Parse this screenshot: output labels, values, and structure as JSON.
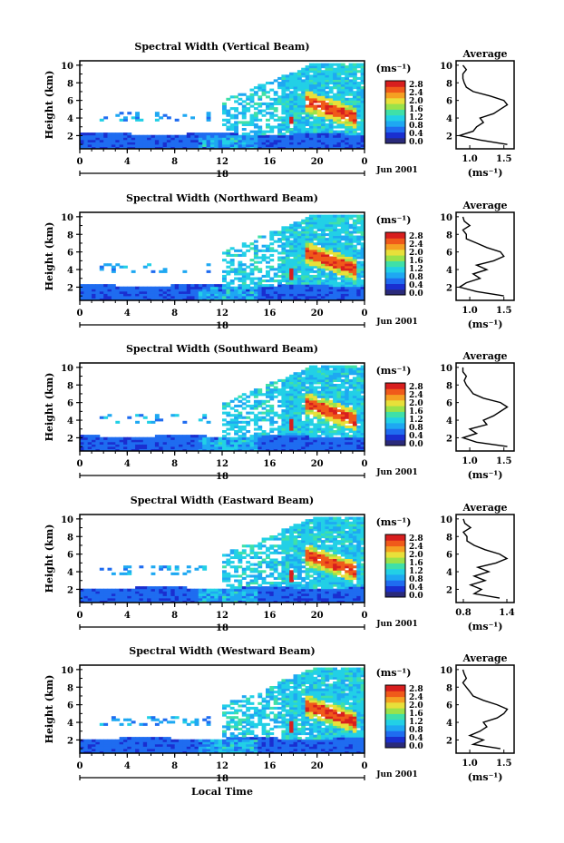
{
  "figure": {
    "colorbar_unit": "(ms⁻¹)",
    "date_label": "Jun 2001",
    "colors": {
      "scale": [
        "#2a2a7a",
        "#1a2fd0",
        "#1f6cf0",
        "#1ea8f2",
        "#22d0e6",
        "#3fe0a8",
        "#9ae24a",
        "#e8e03a",
        "#f5a022",
        "#f05a1a",
        "#d81e1e"
      ],
      "background": "#ffffff"
    }
  },
  "chart_data": [
    {
      "type": "heatmap",
      "title": "Spectral Width (Vertical Beam)",
      "ylabel": "Height (km)",
      "xlabel": "",
      "x_ticks": [
        "0",
        "4",
        "8",
        "12",
        "16",
        "20",
        "0"
      ],
      "x_sub_label": "18",
      "y_ticks": [
        "2",
        "4",
        "6",
        "8",
        "10"
      ],
      "ylim": [
        0.5,
        10.5
      ],
      "xlim": [
        0,
        24
      ],
      "colorbar_ticks": [
        "0.0",
        "0.4",
        "0.8",
        "1.2",
        "1.6",
        "2.0",
        "2.4",
        "2.8"
      ],
      "colorbar_range": [
        0.0,
        2.8
      ],
      "average_profile": {
        "title": "Average",
        "xlabel": "(ms⁻¹)",
        "x_ticks": [
          "1.0",
          "1.5"
        ],
        "xlim": [
          0.8,
          1.65
        ],
        "y_ticks": [
          "2",
          "4",
          "6",
          "8",
          "10"
        ],
        "height_km": [
          1.0,
          1.5,
          2.0,
          2.5,
          3.0,
          3.5,
          4.0,
          4.5,
          5.0,
          5.5,
          6.0,
          6.5,
          7.0,
          7.5,
          8.0,
          8.5,
          9.0,
          9.5,
          10.0
        ],
        "values": [
          1.55,
          1.15,
          0.85,
          1.05,
          1.1,
          1.2,
          1.15,
          1.35,
          1.45,
          1.55,
          1.5,
          1.3,
          1.05,
          0.95,
          0.92,
          0.9,
          0.9,
          0.95,
          0.9
        ]
      }
    },
    {
      "type": "heatmap",
      "title": "Spectral Width (Northward Beam)",
      "ylabel": "Height (km)",
      "xlabel": "",
      "x_ticks": [
        "0",
        "4",
        "8",
        "12",
        "16",
        "20",
        "0"
      ],
      "x_sub_label": "18",
      "y_ticks": [
        "2",
        "4",
        "6",
        "8",
        "10"
      ],
      "ylim": [
        0.5,
        10.5
      ],
      "xlim": [
        0,
        24
      ],
      "colorbar_ticks": [
        "0.0",
        "0.4",
        "0.8",
        "1.2",
        "1.6",
        "2.0",
        "2.4",
        "2.8"
      ],
      "colorbar_range": [
        0.0,
        2.8
      ],
      "average_profile": {
        "title": "Average",
        "xlabel": "(ms⁻¹)",
        "x_ticks": [
          "1.0",
          "1.5"
        ],
        "xlim": [
          0.8,
          1.65
        ],
        "y_ticks": [
          "2",
          "4",
          "6",
          "8",
          "10"
        ],
        "height_km": [
          1.0,
          1.5,
          2.0,
          2.5,
          3.0,
          3.5,
          4.0,
          4.5,
          5.0,
          5.5,
          6.0,
          6.5,
          7.0,
          7.5,
          8.0,
          8.5,
          9.0,
          9.5,
          10.0
        ],
        "values": [
          1.5,
          1.1,
          0.85,
          0.95,
          1.15,
          1.05,
          1.25,
          1.1,
          1.35,
          1.5,
          1.45,
          1.25,
          1.1,
          0.95,
          0.95,
          0.9,
          1.0,
          0.92,
          0.9
        ]
      }
    },
    {
      "type": "heatmap",
      "title": "Spectral Width (Southward Beam)",
      "ylabel": "Height (km)",
      "xlabel": "",
      "x_ticks": [
        "0",
        "4",
        "8",
        "12",
        "16",
        "20",
        "0"
      ],
      "x_sub_label": "18",
      "y_ticks": [
        "2",
        "4",
        "6",
        "8",
        "10"
      ],
      "ylim": [
        0.5,
        10.5
      ],
      "xlim": [
        0,
        24
      ],
      "colorbar_ticks": [
        "0.0",
        "0.4",
        "0.8",
        "1.2",
        "1.6",
        "2.0",
        "2.4",
        "2.8"
      ],
      "colorbar_range": [
        0.0,
        2.8
      ],
      "average_profile": {
        "title": "Average",
        "xlabel": "(ms⁻¹)",
        "x_ticks": [
          "1.0",
          "1.5"
        ],
        "xlim": [
          0.8,
          1.65
        ],
        "y_ticks": [
          "2",
          "4",
          "6",
          "8",
          "10"
        ],
        "height_km": [
          1.0,
          1.5,
          2.0,
          2.5,
          3.0,
          3.5,
          4.0,
          4.5,
          5.0,
          5.5,
          6.0,
          6.5,
          7.0,
          7.5,
          8.0,
          8.5,
          9.0,
          9.5,
          10.0
        ],
        "values": [
          1.55,
          1.1,
          0.9,
          1.1,
          1.0,
          1.25,
          1.2,
          1.35,
          1.45,
          1.55,
          1.45,
          1.2,
          1.05,
          1.0,
          0.95,
          0.92,
          0.95,
          0.9,
          0.9
        ]
      }
    },
    {
      "type": "heatmap",
      "title": "Spectral Width (Eastward Beam)",
      "ylabel": "Height (km)",
      "xlabel": "",
      "x_ticks": [
        "0",
        "4",
        "8",
        "12",
        "16",
        "20",
        "0"
      ],
      "x_sub_label": "18",
      "y_ticks": [
        "2",
        "4",
        "6",
        "8",
        "10"
      ],
      "ylim": [
        0.5,
        10.5
      ],
      "xlim": [
        0,
        24
      ],
      "colorbar_ticks": [
        "0.0",
        "0.4",
        "0.8",
        "1.2",
        "1.6",
        "2.0",
        "2.4",
        "2.8"
      ],
      "colorbar_range": [
        0.0,
        2.8
      ],
      "average_profile": {
        "title": "Average",
        "xlabel": "(ms⁻¹)",
        "x_ticks": [
          "0.8",
          "1.4"
        ],
        "xlim": [
          0.7,
          1.5
        ],
        "y_ticks": [
          "2",
          "4",
          "6",
          "8",
          "10"
        ],
        "height_km": [
          1.0,
          1.5,
          2.0,
          2.5,
          3.0,
          3.5,
          4.0,
          4.5,
          5.0,
          5.5,
          6.0,
          6.5,
          7.0,
          7.5,
          8.0,
          8.5,
          9.0,
          9.5,
          10.0
        ],
        "values": [
          1.3,
          0.95,
          1.05,
          0.9,
          1.1,
          0.95,
          1.15,
          1.0,
          1.25,
          1.4,
          1.3,
          1.1,
          0.95,
          0.85,
          0.85,
          0.8,
          0.9,
          0.82,
          0.8
        ]
      }
    },
    {
      "type": "heatmap",
      "title": "Spectral Width (Westward Beam)",
      "ylabel": "Height (km)",
      "xlabel": "Local Time",
      "x_ticks": [
        "0",
        "4",
        "8",
        "12",
        "16",
        "20",
        "0"
      ],
      "x_sub_label": "18",
      "y_ticks": [
        "2",
        "4",
        "6",
        "8",
        "10"
      ],
      "ylim": [
        0.5,
        10.5
      ],
      "xlim": [
        0,
        24
      ],
      "colorbar_ticks": [
        "0.0",
        "0.4",
        "0.8",
        "1.2",
        "1.6",
        "2.0",
        "2.4",
        "2.8"
      ],
      "colorbar_range": [
        0.0,
        2.8
      ],
      "average_profile": {
        "title": "Average",
        "xlabel": "(ms⁻¹)",
        "x_ticks": [
          "1.0",
          "1.5"
        ],
        "xlim": [
          0.8,
          1.65
        ],
        "y_ticks": [
          "2",
          "4",
          "6",
          "8",
          "10"
        ],
        "height_km": [
          1.0,
          1.5,
          2.0,
          2.5,
          3.0,
          3.5,
          4.0,
          4.5,
          5.0,
          5.5,
          6.0,
          6.5,
          7.0,
          7.5,
          8.0,
          8.5,
          9.0,
          9.5,
          10.0
        ],
        "values": [
          1.45,
          1.05,
          1.2,
          1.0,
          1.15,
          1.25,
          1.2,
          1.4,
          1.5,
          1.55,
          1.4,
          1.2,
          1.05,
          1.0,
          0.95,
          0.9,
          0.95,
          0.92,
          0.9
        ]
      }
    }
  ]
}
